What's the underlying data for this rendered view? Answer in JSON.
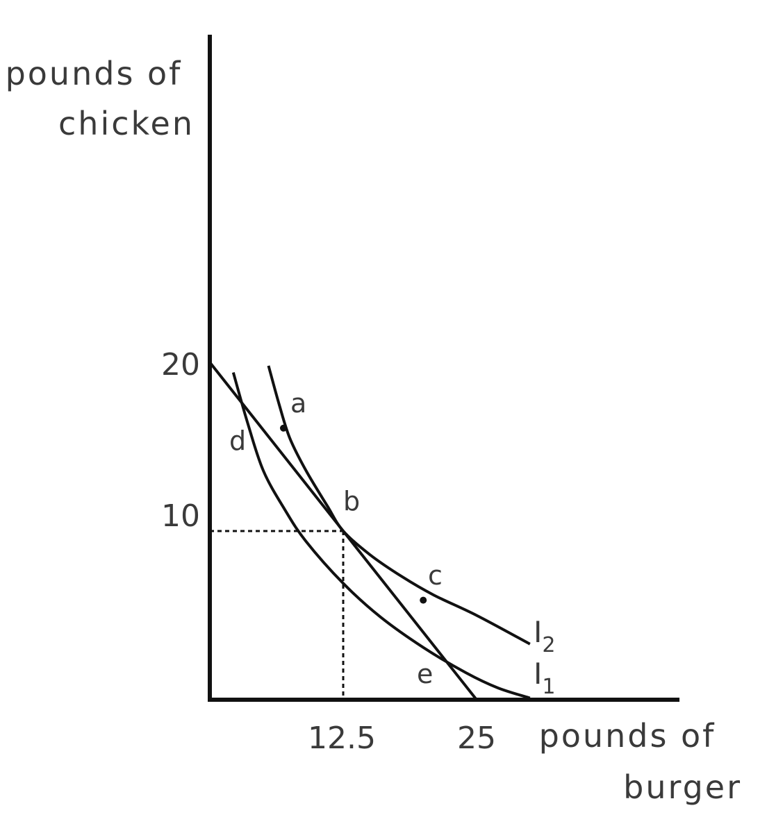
{
  "chart_data": {
    "type": "line",
    "title": "",
    "ylabel_lines": [
      "pounds of",
      "chicken"
    ],
    "xlabel_lines": [
      "pounds of",
      "burger"
    ],
    "x_ticks": [
      {
        "value": 12.5,
        "label": "12.5"
      },
      {
        "value": 25,
        "label": "25"
      }
    ],
    "y_ticks": [
      {
        "value": 20,
        "label": "20"
      },
      {
        "value": 10,
        "label": "10"
      }
    ],
    "grid": false,
    "series": [
      {
        "key": "budget",
        "x": [
          0,
          25
        ],
        "y": [
          20,
          0
        ]
      },
      {
        "key": "I1",
        "label": "I",
        "subscript": "1",
        "x": [
          2.2,
          3.5,
          5,
          7,
          9,
          12.5,
          16,
          20,
          24,
          27,
          30
        ],
        "y": [
          19.4,
          16.5,
          13.6,
          11.3,
          9.4,
          6.9,
          4.9,
          3.1,
          1.6,
          0.7,
          0.1
        ]
      },
      {
        "key": "I2",
        "label": "I",
        "subscript": "2",
        "x": [
          5.5,
          6.5,
          7.5,
          9,
          11,
          12.5,
          15,
          18,
          21,
          25,
          30
        ],
        "y": [
          19.8,
          17.5,
          15.5,
          13.6,
          11.5,
          10,
          8.6,
          7.3,
          6.2,
          5.0,
          3.3
        ]
      }
    ],
    "points": [
      {
        "label": "a",
        "x": 6.9,
        "y": 16.1,
        "dot": true
      },
      {
        "label": "b",
        "x": 12.5,
        "y": 10,
        "dot": false
      },
      {
        "label": "c",
        "x": 20,
        "y": 5.9,
        "dot": true
      },
      {
        "label": "d",
        "x": 4.4,
        "y": 15.6,
        "dot": false
      },
      {
        "label": "e",
        "x": 22.3,
        "y": 1.8,
        "dot": false
      }
    ],
    "reference_lines": {
      "x": 12.5,
      "y": 10,
      "style": "dotted"
    },
    "xlim": [
      0,
      44
    ],
    "ylim": [
      0,
      37
    ]
  }
}
